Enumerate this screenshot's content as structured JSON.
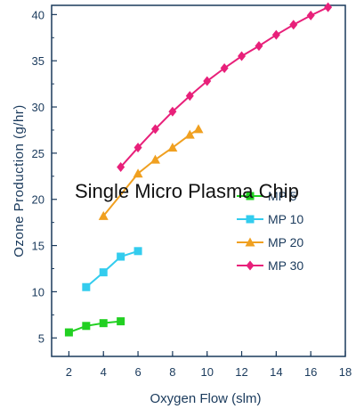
{
  "chart_data": {
    "type": "line",
    "title": "",
    "annotation": "Single Micro Plasma Chip",
    "xlabel": "Oxygen Flow (slm)",
    "ylabel": "Ozone Production (g/hr)",
    "xlim": [
      1,
      18
    ],
    "ylim": [
      3,
      41
    ],
    "x_ticks": [
      2,
      4,
      6,
      8,
      10,
      12,
      14,
      16,
      18
    ],
    "y_ticks": [
      5,
      10,
      15,
      20,
      25,
      30,
      35,
      40
    ],
    "grid": false,
    "legend_position": "lower-right",
    "series": [
      {
        "name": "MP 5",
        "color": "#22d022",
        "marker": "square",
        "x": [
          2,
          3,
          4,
          5
        ],
        "y": [
          5.6,
          6.3,
          6.6,
          6.8
        ]
      },
      {
        "name": "MP 10",
        "color": "#33ccee",
        "marker": "square",
        "x": [
          3,
          4,
          5,
          6
        ],
        "y": [
          10.5,
          12.1,
          13.8,
          14.4
        ]
      },
      {
        "name": "MP 20",
        "color": "#f0a020",
        "marker": "triangle",
        "x": [
          4,
          6,
          7,
          8,
          9,
          9.5
        ],
        "y": [
          18.2,
          22.8,
          24.3,
          25.6,
          27.0,
          27.6
        ]
      },
      {
        "name": "MP 30",
        "color": "#e8207a",
        "marker": "diamond",
        "x": [
          5,
          6,
          7,
          8,
          9,
          10,
          11,
          12,
          13,
          14,
          15,
          16,
          17
        ],
        "y": [
          23.5,
          25.6,
          27.6,
          29.5,
          31.2,
          32.8,
          34.2,
          35.5,
          36.6,
          37.8,
          38.9,
          39.9,
          40.8
        ]
      }
    ]
  }
}
